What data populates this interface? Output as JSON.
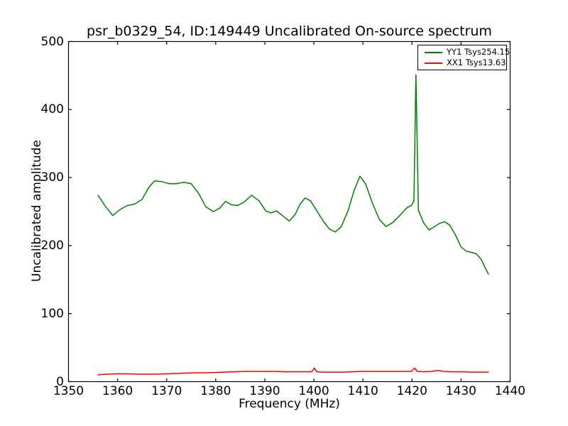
{
  "chart_data": {
    "type": "line",
    "title": "psr_b0329_54, ID:149449 Uncalibrated On-source spectrum",
    "xlabel": "Frequency (MHz)",
    "ylabel": "Uncalibrated amplitude",
    "xlim": [
      1350,
      1440
    ],
    "ylim": [
      0,
      500
    ],
    "xticks": [
      1350,
      1360,
      1370,
      1380,
      1390,
      1400,
      1410,
      1420,
      1430,
      1440
    ],
    "yticks": [
      0,
      100,
      200,
      300,
      400,
      500
    ],
    "grid": false,
    "legend_position": "top-right",
    "frame_color": "#000000",
    "background": "#ffffff",
    "series": [
      {
        "name": "YY1 Tsys254.15",
        "color": "#008000",
        "x": [
          1356.0,
          1357.5,
          1359.0,
          1360.5,
          1362.0,
          1363.5,
          1365.0,
          1366.3,
          1367.5,
          1369.0,
          1370.5,
          1372.0,
          1373.5,
          1375.0,
          1376.5,
          1378.0,
          1379.5,
          1380.8,
          1382.0,
          1383.2,
          1384.5,
          1385.8,
          1387.3,
          1388.8,
          1390.2,
          1391.3,
          1392.4,
          1393.6,
          1395.0,
          1396.2,
          1397.2,
          1398.2,
          1399.3,
          1400.6,
          1402.0,
          1403.2,
          1404.4,
          1405.6,
          1407.0,
          1408.2,
          1409.4,
          1410.6,
          1411.9,
          1413.3,
          1414.7,
          1416.1,
          1417.6,
          1419.0,
          1419.9,
          1420.4,
          1420.8,
          1421.3,
          1422.4,
          1423.5,
          1424.6,
          1425.7,
          1426.7,
          1427.7,
          1428.9,
          1430.0,
          1431.0,
          1432.1,
          1433.1,
          1434.1,
          1435.0,
          1435.6
        ],
        "y": [
          274,
          258,
          244,
          253,
          259,
          261,
          268,
          285,
          295,
          294,
          291,
          291,
          293,
          291,
          277,
          257,
          250,
          255,
          265,
          260,
          259,
          264,
          274,
          266,
          251,
          248,
          251,
          244,
          236,
          246,
          261,
          270,
          266,
          251,
          235,
          224,
          220,
          228,
          252,
          281,
          302,
          290,
          263,
          239,
          228,
          234,
          245,
          256,
          259,
          266,
          451,
          252,
          233,
          223,
          228,
          233,
          235,
          230,
          215,
          198,
          192,
          190,
          188,
          180,
          166,
          158
        ]
      },
      {
        "name": "XX1 Tsys13.63",
        "color": "#ff0000",
        "x": [
          1356.0,
          1358,
          1360,
          1362,
          1364,
          1366,
          1368,
          1370,
          1372,
          1374,
          1376,
          1378,
          1380,
          1382,
          1384,
          1386,
          1388,
          1390,
          1392,
          1394,
          1396,
          1398,
          1399.6,
          1400.1,
          1400.6,
          1402,
          1404,
          1406,
          1408,
          1410,
          1412,
          1414,
          1416,
          1418,
          1419.9,
          1420.5,
          1421.1,
          1422.5,
          1424,
          1425.2,
          1426.4,
          1428,
          1430,
          1432,
          1434,
          1435.6
        ],
        "y": [
          10,
          11,
          11.5,
          11.5,
          11,
          11,
          11,
          11.5,
          12,
          12.5,
          13,
          13,
          13.5,
          14,
          14.5,
          15,
          15,
          15,
          15,
          14.5,
          14.5,
          14.5,
          14.5,
          20,
          14.5,
          14,
          14,
          14,
          14.5,
          15,
          15,
          15,
          15,
          15,
          15,
          20,
          15,
          14.5,
          15,
          16.5,
          15,
          14.5,
          14.5,
          14,
          14,
          14
        ]
      }
    ]
  }
}
